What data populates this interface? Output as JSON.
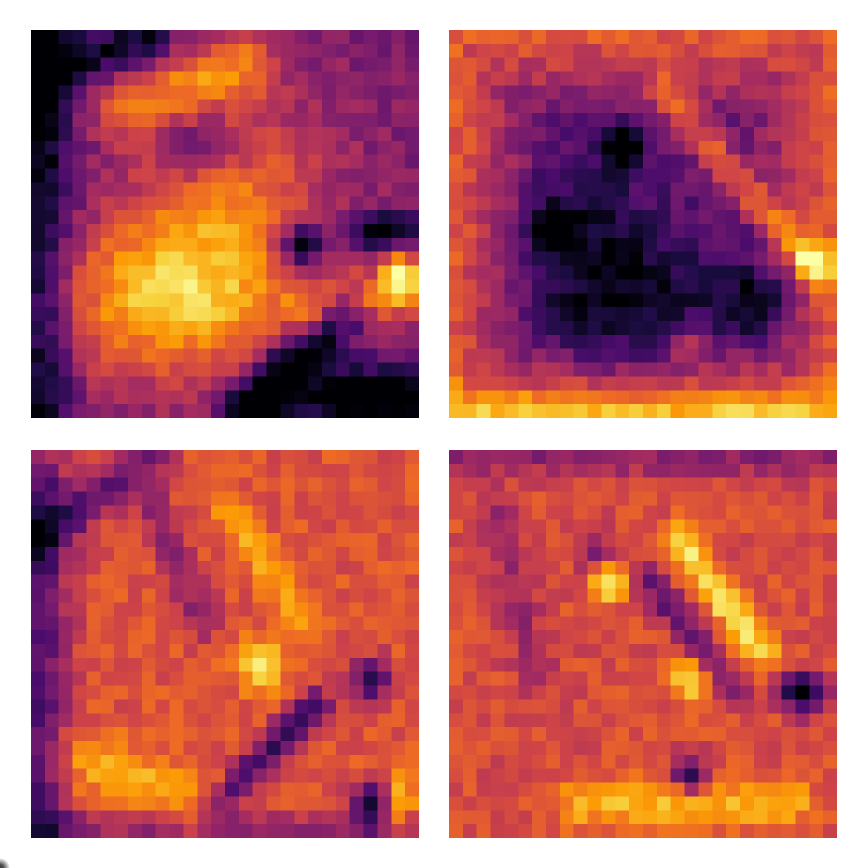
{
  "figure": {
    "rows": 2,
    "cols": 2,
    "grid_size": 28,
    "colormap": "inferno",
    "colormap_stops": [
      "#000004",
      "#1b0c41",
      "#4a0c6b",
      "#781c6d",
      "#a52c60",
      "#cf4446",
      "#ed6925",
      "#fb9b06",
      "#f7d13d",
      "#fcffa4"
    ],
    "panels": [
      {
        "id": "panel-top-left",
        "description_visible": false
      },
      {
        "id": "panel-top-right",
        "description_visible": false
      },
      {
        "id": "panel-bottom-left",
        "description_visible": false
      },
      {
        "id": "panel-bottom-right",
        "description_visible": false
      }
    ]
  }
}
